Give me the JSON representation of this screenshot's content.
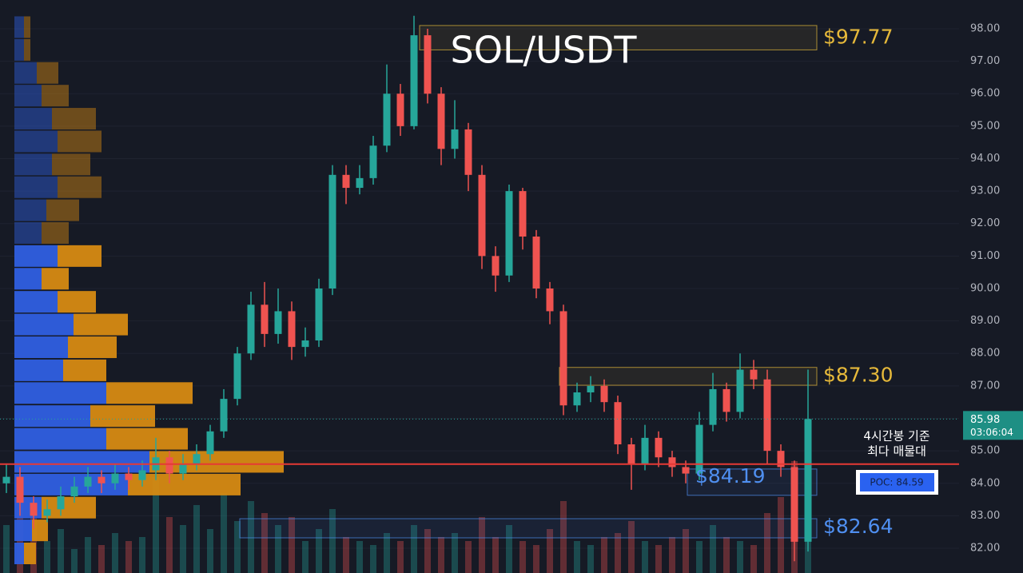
{
  "chart_data": {
    "type": "candlestick",
    "title": "SOL/USDT",
    "ylim": [
      81.237,
      98.886
    ],
    "yticks": [
      {
        "value": 82,
        "label": "82.00"
      },
      {
        "value": 83,
        "label": "83.00"
      },
      {
        "value": 84,
        "label": "84.00"
      },
      {
        "value": 85,
        "label": "85.00"
      },
      {
        "value": 86,
        "label": "86.00"
      },
      {
        "value": 87,
        "label": "87.00"
      },
      {
        "value": 88,
        "label": "88.00"
      },
      {
        "value": 89,
        "label": "89.00"
      },
      {
        "value": 90,
        "label": "90.00"
      },
      {
        "value": 91,
        "label": "91.00"
      },
      {
        "value": 92,
        "label": "92.00"
      },
      {
        "value": 93,
        "label": "93.00"
      },
      {
        "value": 94,
        "label": "94.00"
      },
      {
        "value": 95,
        "label": "95.00"
      },
      {
        "value": 96,
        "label": "96.00"
      },
      {
        "value": 97,
        "label": "97.00"
      },
      {
        "value": 98,
        "label": "98.00"
      }
    ],
    "up_color": "#26a69a",
    "down_color": "#ef5350",
    "open": [
      84.0,
      84.2,
      83.4,
      83.0,
      83.2,
      83.6,
      83.9,
      84.2,
      84.0,
      84.3,
      84.1,
      84.4,
      84.8,
      84.3,
      84.6,
      84.9,
      85.6,
      86.6,
      88.0,
      89.5,
      88.6,
      89.3,
      88.2,
      88.4,
      90.0,
      93.5,
      93.1,
      93.4,
      94.4,
      96.0,
      95.0,
      97.8,
      96.0,
      94.3,
      94.9,
      93.5,
      91.0,
      90.4,
      93.0,
      91.6,
      90.0,
      89.3,
      86.4,
      86.8,
      87.0,
      86.5,
      85.2,
      84.6,
      85.4,
      84.8,
      84.5,
      84.3,
      85.8,
      86.9,
      86.2,
      87.5,
      87.2,
      85.0,
      84.5,
      82.2
    ],
    "high": [
      84.6,
      84.5,
      83.6,
      83.5,
      83.9,
      84.2,
      84.5,
      84.4,
      84.6,
      84.5,
      84.7,
      85.4,
      85.0,
      84.9,
      85.2,
      85.8,
      86.9,
      88.2,
      89.9,
      90.2,
      90.0,
      89.6,
      88.8,
      90.3,
      93.8,
      93.8,
      93.8,
      94.7,
      96.9,
      96.3,
      98.4,
      98.0,
      96.2,
      95.8,
      95.1,
      93.8,
      91.3,
      93.2,
      93.1,
      91.8,
      90.2,
      89.5,
      87.1,
      87.3,
      87.2,
      86.7,
      85.4,
      85.8,
      85.6,
      85.0,
      84.7,
      86.2,
      87.4,
      87.1,
      88.0,
      87.8,
      87.5,
      85.2,
      84.7,
      87.5
    ],
    "low": [
      83.7,
      83.0,
      82.6,
      82.8,
      83.0,
      83.4,
      83.7,
      83.7,
      83.8,
      83.8,
      83.9,
      84.1,
      84.0,
      84.1,
      84.4,
      84.7,
      85.4,
      86.4,
      87.8,
      88.2,
      88.3,
      87.8,
      87.9,
      88.2,
      89.8,
      92.6,
      92.9,
      93.2,
      94.2,
      94.7,
      94.9,
      95.7,
      93.8,
      94.0,
      93.0,
      90.6,
      89.9,
      90.2,
      91.2,
      89.7,
      88.9,
      86.1,
      86.2,
      86.5,
      86.2,
      84.9,
      83.8,
      84.4,
      84.5,
      84.2,
      84.0,
      84.1,
      85.6,
      85.9,
      86.0,
      86.9,
      84.6,
      84.2,
      81.6,
      81.9
    ],
    "close": [
      84.2,
      83.4,
      83.0,
      83.2,
      83.6,
      83.9,
      84.2,
      84.0,
      84.3,
      84.1,
      84.4,
      84.8,
      84.3,
      84.6,
      84.9,
      85.6,
      86.6,
      88.0,
      89.5,
      88.6,
      89.3,
      88.2,
      88.4,
      90.0,
      93.5,
      93.1,
      93.4,
      94.4,
      96.0,
      95.0,
      97.8,
      96.0,
      94.3,
      94.9,
      93.5,
      91.0,
      90.4,
      93.0,
      91.6,
      90.0,
      89.3,
      86.4,
      86.8,
      87.0,
      86.5,
      85.2,
      84.6,
      85.4,
      84.8,
      84.5,
      84.3,
      85.8,
      86.9,
      86.2,
      87.5,
      87.2,
      85.0,
      84.5,
      82.2,
      85.98
    ],
    "volume": [
      60,
      95,
      80,
      40,
      55,
      30,
      45,
      35,
      50,
      40,
      45,
      120,
      70,
      60,
      85,
      55,
      100,
      65,
      90,
      75,
      60,
      70,
      40,
      55,
      80,
      45,
      40,
      35,
      50,
      40,
      60,
      55,
      45,
      50,
      40,
      70,
      45,
      60,
      40,
      35,
      55,
      90,
      40,
      35,
      45,
      50,
      65,
      40,
      35,
      45,
      55,
      40,
      60,
      45,
      40,
      35,
      75,
      95,
      140,
      70
    ],
    "profile": {
      "price": [
        98.05,
        97.35,
        96.64,
        95.94,
        95.23,
        94.53,
        93.82,
        93.12,
        92.41,
        91.71,
        91.0,
        90.3,
        89.59,
        88.89,
        88.19,
        87.48,
        86.78,
        86.07,
        85.37,
        84.66,
        83.96,
        83.25,
        82.55,
        81.84
      ],
      "buy": [
        12,
        12,
        28,
        34,
        47,
        54,
        47,
        54,
        40,
        34,
        54,
        34,
        54,
        74,
        67,
        61,
        115,
        95,
        115,
        169,
        142,
        34,
        22,
        12
      ],
      "sell": [
        8,
        8,
        27,
        34,
        55,
        55,
        48,
        55,
        41,
        34,
        55,
        34,
        48,
        68,
        61,
        54,
        108,
        81,
        102,
        168,
        141,
        68,
        20,
        15
      ]
    },
    "zones": [
      {
        "value": 97.77,
        "label": "$97.77",
        "low": 97.35,
        "high": 98.1,
        "color": "#e6b93a"
      },
      {
        "value": 87.3,
        "label": "$87.30",
        "low": 87.02,
        "high": 87.57,
        "color": "#e6b93a"
      },
      {
        "value": 84.19,
        "label": "$84.19",
        "low": 83.63,
        "high": 84.44,
        "color": "#4f8ff0"
      },
      {
        "value": 82.64,
        "label": "$82.64",
        "low": 82.32,
        "high": 82.91,
        "color": "#4f8ff0"
      }
    ],
    "poc": {
      "value": 84.59,
      "label": "POC: 84.59",
      "note": [
        "4시간봉 기준",
        "최다 매물대"
      ],
      "color": "#e53935"
    },
    "current_price": {
      "value": 85.98,
      "label": "85.98",
      "time": "03:06:04"
    }
  }
}
